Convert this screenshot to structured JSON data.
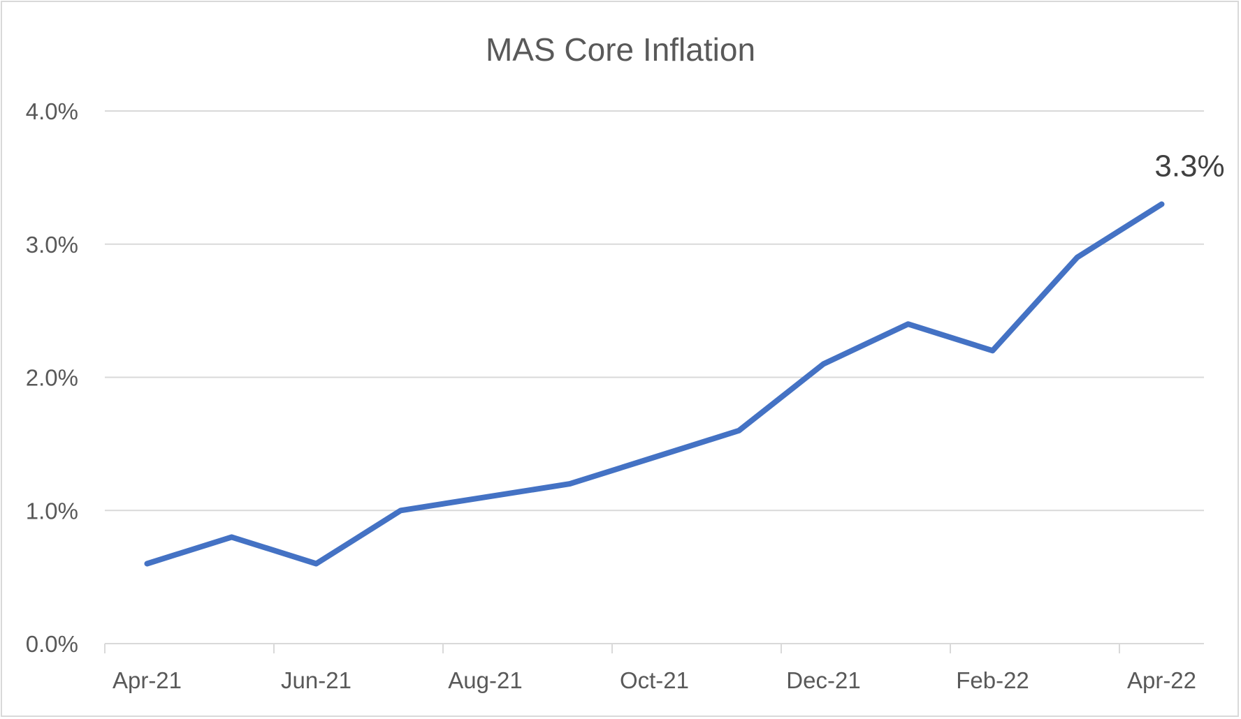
{
  "chart_data": {
    "type": "line",
    "title": "MAS Core Inflation",
    "xlabel": "",
    "ylabel": "",
    "categories": [
      "Apr-21",
      "May-21",
      "Jun-21",
      "Jul-21",
      "Aug-21",
      "Sep-21",
      "Oct-21",
      "Nov-21",
      "Dec-21",
      "Jan-22",
      "Feb-22",
      "Mar-22",
      "Apr-22"
    ],
    "x_tick_labels": [
      "Apr-21",
      "Jun-21",
      "Aug-21",
      "Oct-21",
      "Dec-21",
      "Feb-22",
      "Apr-22"
    ],
    "y_tick_labels": [
      "0.0%",
      "1.0%",
      "2.0%",
      "3.0%",
      "4.0%"
    ],
    "ylim": [
      0,
      4
    ],
    "y_ticks": [
      0,
      1,
      2,
      3,
      4
    ],
    "grid": true,
    "series": [
      {
        "values": [
          0.6,
          0.8,
          0.6,
          1.0,
          1.1,
          1.2,
          1.4,
          1.6,
          2.1,
          2.4,
          2.2,
          2.9,
          3.3
        ],
        "color": "#4472c4"
      }
    ],
    "annotations": [
      {
        "text": "3.3%",
        "category": "Apr-22",
        "value": 3.3
      }
    ]
  }
}
